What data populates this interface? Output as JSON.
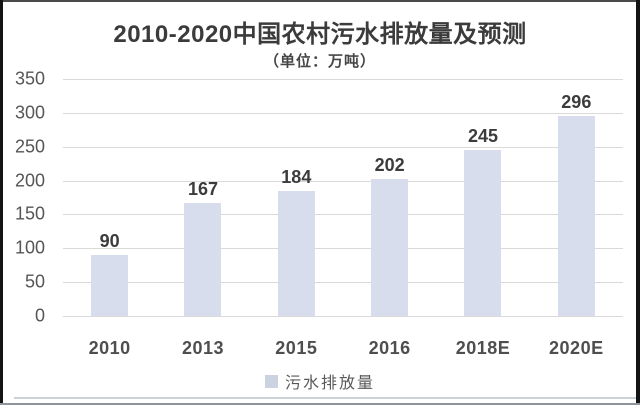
{
  "chart_data": {
    "type": "bar",
    "title": "2010-2020中国农村污水排放量及预测",
    "subtitle": "（单位：万吨）",
    "categories": [
      "2010",
      "2013",
      "2015",
      "2016",
      "2018E",
      "2020E"
    ],
    "values": [
      90,
      167,
      184,
      202,
      245,
      296
    ],
    "series": [
      {
        "name": "污水排放量",
        "values": [
          90,
          167,
          184,
          202,
          245,
          296
        ]
      }
    ],
    "xlabel": "",
    "ylabel": "",
    "ylim": [
      0,
      350
    ],
    "ytick_step": 50,
    "yticks": [
      350,
      300,
      250,
      200,
      150,
      100,
      50,
      0
    ],
    "grid": true,
    "legend_position": "bottom",
    "legend_label": "污水排放量",
    "colors": {
      "bar_fill": "#d8ddee",
      "legend_swatch": "#ccd3e0",
      "gridline": "#d9d9d9",
      "title_text": "#3b3b3b",
      "tick_text": "#565656",
      "value_label_text": "#3c3c3c"
    }
  }
}
